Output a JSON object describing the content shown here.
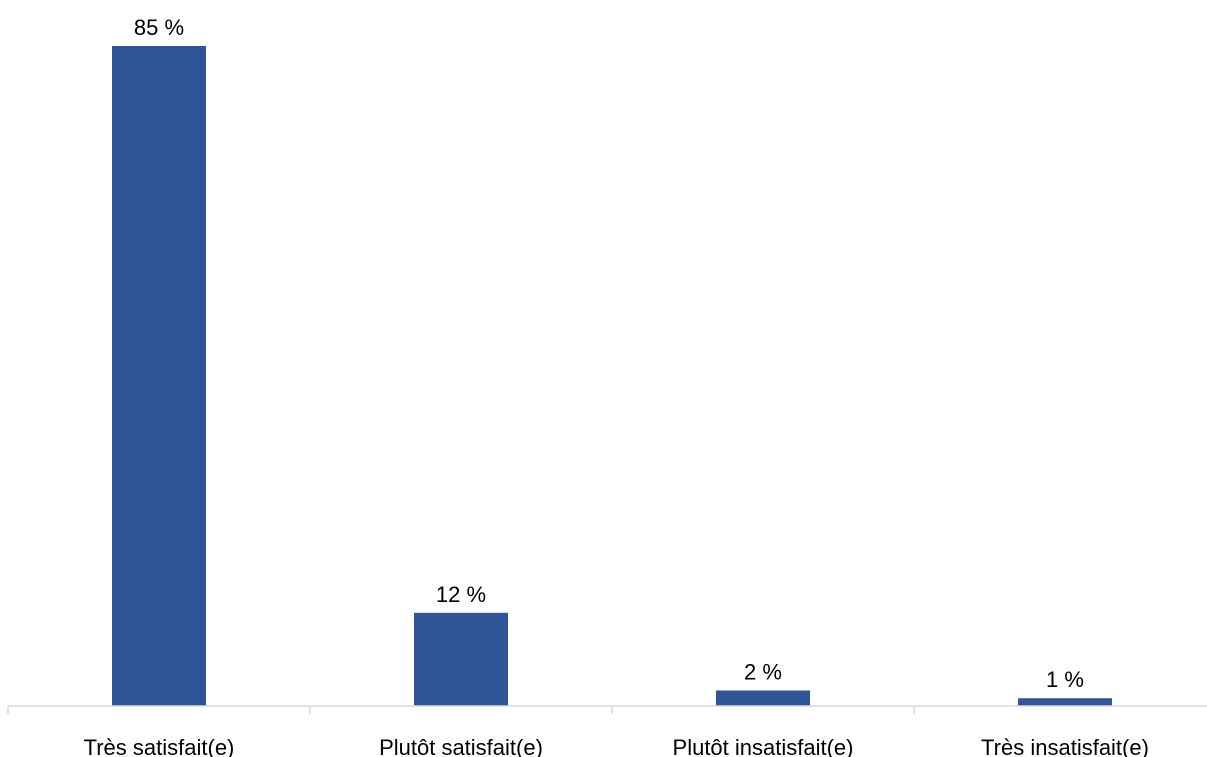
{
  "chart_data": {
    "type": "bar",
    "categories": [
      "Très satisfait(e)",
      "Plutôt satisfait(e)",
      "Plutôt insatisfait(e)",
      "Très insatisfait(e)"
    ],
    "values": [
      85,
      12,
      2,
      1
    ],
    "data_labels": [
      "85 %",
      "12 %",
      "2 %",
      "1 %"
    ],
    "unit": "%",
    "title": "",
    "xlabel": "",
    "ylabel": "",
    "ylim": [
      0,
      85
    ],
    "grid": false,
    "legend": "none",
    "colors": {
      "bar": "#2F5597",
      "axis": "#D9D9D9",
      "text": "#000000"
    }
  }
}
